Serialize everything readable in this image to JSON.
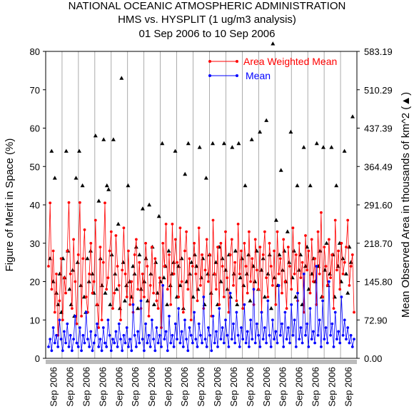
{
  "chart_data": {
    "type": "line",
    "title": "NATIONAL OCEANIC ATMOSPHERIC ADMINISTRATION",
    "subtitle": "HMS vs. HYSPLIT (1 ug/m3 analysis)",
    "date_range": "01 Sep 2006 to 10 Sep 2006",
    "ylabel": "Figure of Merit in Space (%)",
    "y2label": "Mean Observed Area in thousands of km^2 (▲)",
    "ylim": [
      0,
      80
    ],
    "y2lim": [
      0,
      583.19
    ],
    "yticks": [
      "0",
      "10",
      "20",
      "30",
      "40",
      "50",
      "60",
      "70",
      "80"
    ],
    "y2ticks": [
      "0.00",
      "72.90",
      "145.80",
      "218.70",
      "291.60",
      "364.49",
      "437.39",
      "510.29",
      "583.19"
    ],
    "xticks": [
      "Sep 2006",
      "Sep 2006",
      "Sep 2006",
      "Sep 2006",
      "Sep 2006",
      "Sep 2006",
      "Sep 2006",
      "Sep 2006",
      "Sep 2006",
      "Sep 2006",
      "Sep 2006",
      "Sep 2006",
      "Sep 2006",
      "Sep 2006",
      "Sep 2006",
      "Sep 2006",
      "Sep 2006",
      "Sep 2006",
      "Sep 2006"
    ],
    "legend_position": "top-right",
    "grid": "vertical lines only",
    "series": [
      {
        "name": "Area Weighted Mean",
        "color": "#ff0000",
        "values": [
          24,
          40.5,
          18,
          28,
          12,
          22,
          6,
          15,
          26,
          10,
          21,
          17,
          28,
          40.6,
          22,
          13,
          31,
          20,
          9,
          27,
          40.6,
          11,
          26,
          33.5,
          16,
          12,
          22,
          30,
          17,
          20,
          36,
          14,
          8,
          29,
          10,
          25,
          40.5,
          18,
          21,
          28,
          33,
          13,
          17,
          32,
          24,
          19,
          10,
          23,
          34,
          22,
          16,
          28,
          14,
          20,
          12,
          27,
          31,
          18,
          25,
          13,
          22,
          16,
          30,
          24,
          11,
          19,
          29,
          17,
          26,
          15,
          13,
          21,
          8,
          30,
          24,
          35,
          18,
          27,
          14,
          35,
          22,
          31,
          25,
          16,
          34,
          20,
          12,
          28,
          33,
          18,
          26,
          10,
          24,
          30,
          22,
          15,
          34,
          19,
          27,
          13,
          23,
          31,
          20,
          27,
          11,
          36,
          22,
          18,
          29,
          14,
          30,
          24,
          16,
          33,
          21,
          12,
          27,
          31,
          19,
          25,
          15,
          35,
          22,
          28,
          13,
          30,
          24,
          17,
          33,
          20,
          26,
          14,
          31,
          23,
          18,
          29,
          12,
          27,
          33,
          21,
          16,
          30,
          24,
          19,
          28,
          14,
          33,
          22,
          26,
          17,
          31,
          20,
          13,
          29,
          24,
          18,
          34,
          22,
          27,
          15,
          30,
          21,
          25,
          12,
          32,
          23,
          28,
          17,
          31,
          20,
          26,
          14,
          33,
          22,
          38,
          16,
          29,
          24,
          19,
          31,
          21,
          27,
          13,
          36,
          23,
          28,
          18,
          30,
          22,
          25,
          29,
          36,
          19,
          24,
          27,
          12
        ]
      },
      {
        "name": "Mean",
        "color": "#0000ff",
        "values": [
          3,
          5,
          2,
          8,
          4,
          6,
          3,
          10,
          5,
          2,
          7,
          4,
          9,
          3,
          6,
          2,
          5,
          11,
          4,
          3,
          8,
          2,
          6,
          4,
          12,
          5,
          3,
          7,
          2,
          4,
          6,
          9,
          3,
          5,
          2,
          8,
          4,
          3,
          10,
          6,
          2,
          5,
          4,
          7,
          3,
          9,
          5,
          2,
          6,
          4,
          8,
          3,
          5,
          2,
          14,
          6,
          3,
          7,
          4,
          15,
          5,
          2,
          9,
          4,
          6,
          3,
          10,
          5,
          2,
          8,
          4,
          6,
          3,
          19,
          5,
          7,
          2,
          11,
          4,
          6,
          3,
          9,
          5,
          13,
          4,
          7,
          3,
          10,
          5,
          2,
          8,
          6,
          4,
          12,
          5,
          3,
          9,
          6,
          4,
          16,
          5,
          3,
          8,
          6,
          2,
          11,
          4,
          7,
          3,
          13,
          5,
          8,
          4,
          10,
          6,
          3,
          17,
          5,
          9,
          4,
          12,
          6,
          3,
          8,
          5,
          14,
          4,
          7,
          3,
          10,
          5,
          18,
          4,
          9,
          6,
          3,
          12,
          5,
          8,
          4,
          15,
          6,
          3,
          10,
          5,
          7,
          4,
          19,
          6,
          9,
          3,
          12,
          5,
          8,
          4,
          14,
          6,
          10,
          3,
          17,
          5,
          8,
          4,
          22,
          6,
          9,
          3,
          13,
          5,
          7,
          4,
          24,
          6,
          10,
          3,
          15,
          5,
          8,
          4,
          20,
          6,
          9,
          3,
          12,
          5,
          7,
          4,
          16,
          6,
          10,
          5,
          8,
          4,
          6,
          3,
          5
        ]
      },
      {
        "name": "Mean Observed Area",
        "color": "#000000",
        "axis": "right",
        "values": [
          26,
          54,
          20,
          47,
          17,
          14,
          22,
          12,
          26,
          21,
          54,
          28,
          18,
          14,
          23,
          11,
          47,
          25,
          54,
          19,
          45,
          16,
          12,
          26,
          20,
          28,
          22,
          17,
          58,
          14,
          41,
          26,
          19,
          57,
          17,
          45,
          44,
          14,
          27,
          57,
          22,
          18,
          35,
          13,
          73,
          25,
          15,
          19,
          45,
          20,
          16,
          24,
          22,
          29,
          13,
          27,
          18,
          39,
          20,
          26,
          15,
          40,
          22,
          29,
          14,
          25,
          17,
          37,
          20,
          56,
          21,
          24,
          14,
          28,
          19,
          22,
          25,
          54,
          16,
          24,
          19,
          26,
          13,
          48,
          20,
          56,
          22,
          25,
          16,
          27,
          24,
          18,
          55,
          21,
          26,
          14,
          47,
          22,
          27,
          17,
          56,
          22,
          25,
          14,
          29,
          20,
          26,
          56,
          23,
          18,
          27,
          16,
          55,
          22,
          28,
          14,
          56,
          21,
          26,
          19,
          45,
          22,
          27,
          15,
          57,
          24,
          20,
          28,
          18,
          59,
          23,
          26,
          16,
          62,
          22,
          27,
          13,
          82,
          21,
          36,
          19,
          27,
          49,
          23,
          28,
          20,
          33,
          25,
          59,
          21,
          28,
          16,
          45,
          23,
          27,
          14,
          55,
          24,
          29,
          18,
          45,
          22,
          26,
          20,
          56,
          24,
          28,
          16,
          55,
          23,
          30,
          19,
          22,
          55,
          27,
          16,
          45,
          24,
          30,
          20,
          26,
          54,
          22,
          17,
          29,
          25,
          63
        ]
      }
    ]
  }
}
